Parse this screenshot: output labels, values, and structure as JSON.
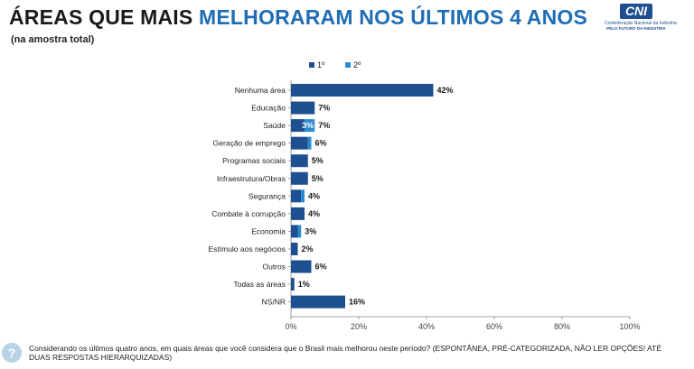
{
  "header": {
    "title_part1": "ÁREAS QUE MAIS ",
    "title_part2": "MELHORARAM NOS ÚLTIMOS 4 ANOS",
    "subtitle": "(na amostra total)",
    "logo": {
      "mark": "CNI",
      "line1": "Confederação Nacional da Indústria",
      "line2": "PELO FUTURO DA INDÚSTRIA"
    }
  },
  "colors": {
    "first": "#1d4f91",
    "second": "#2a8bd0",
    "title_blue": "#1f6db5"
  },
  "chart_data": {
    "type": "bar",
    "orientation": "horizontal",
    "stacked": true,
    "categories": [
      "Nenhuma área",
      "Educação",
      "Saúde",
      "Geração de emprego",
      "Programas sociais",
      "Infraestrutura/Obras",
      "Segurança",
      "Combate à corrupção",
      "Economia",
      "Estímulo aos negócios",
      "Outros",
      "Todas as áreas",
      "NS/NR"
    ],
    "series": [
      {
        "name": "1º",
        "values": [
          42,
          7,
          4,
          5,
          5,
          5,
          3,
          4,
          2,
          2,
          6,
          1,
          16
        ]
      },
      {
        "name": "2º",
        "values": [
          0,
          0,
          3,
          1,
          0,
          0,
          1,
          0,
          1,
          0,
          0,
          0,
          0
        ]
      }
    ],
    "data_labels": [
      "42%",
      "7%",
      "7%",
      "6%",
      "5%",
      "5%",
      "4%",
      "4%",
      "3%",
      "2%",
      "6%",
      "1%",
      "16%"
    ],
    "inner_labels": {
      "2": "3%"
    },
    "xlim": [
      0,
      100
    ],
    "xticks": [
      "0%",
      "20%",
      "40%",
      "60%",
      "80%",
      "100%"
    ],
    "legend_position": "top",
    "grid": false
  },
  "footer": {
    "icon": "?",
    "question": "Considerando os últimos quatro anos, em quais áreas que você considera que o Brasil mais melhorou neste período? (ESPONTÂNEA, PRÉ-CATEGORIZADA, NÃO LER OPÇÕES! ATÉ DUAS RESPOSTAS HIERARQUIZADAS)"
  }
}
